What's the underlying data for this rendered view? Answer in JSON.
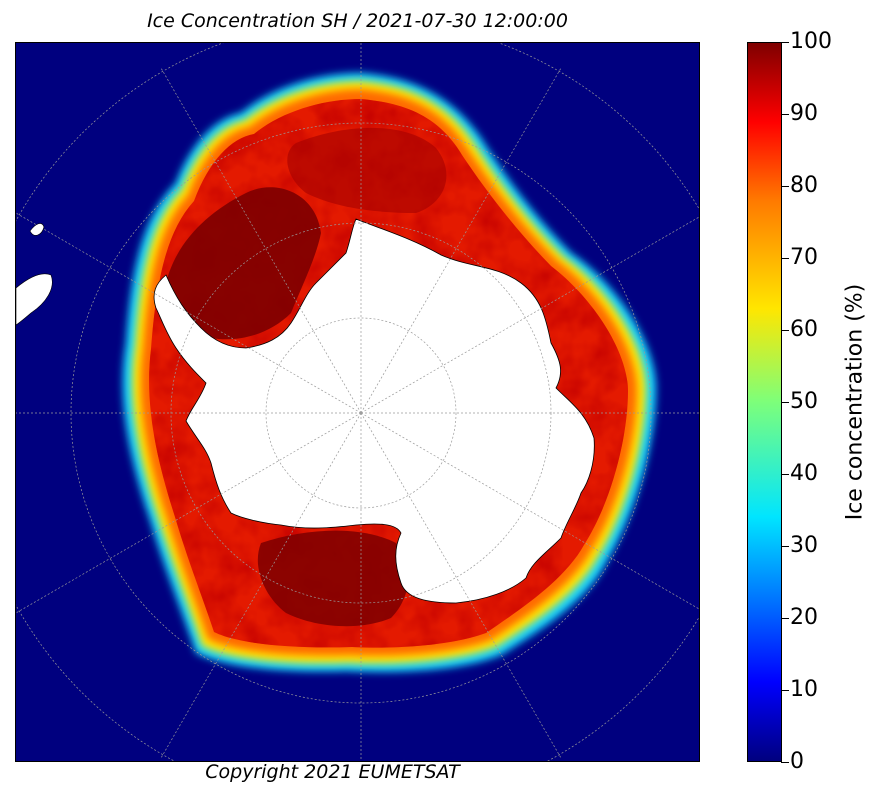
{
  "title": "Ice Concentration SH / 2021-07-30 12:00:00",
  "copyright": "Copyright 2021 EUMETSAT",
  "colorbar": {
    "label": "Ice concentration (%)",
    "ticks": [
      "0",
      "10",
      "20",
      "30",
      "40",
      "50",
      "60",
      "70",
      "80",
      "90",
      "100"
    ],
    "range": [
      0,
      100
    ],
    "colormap": "jet",
    "colors": [
      "#00007f",
      "#0000ff",
      "#00e5ff",
      "#7dff7a",
      "#ffe600",
      "#ff7a00",
      "#ff0000",
      "#7f0000"
    ]
  },
  "map": {
    "projection": "south-polar-stereographic",
    "hemisphere": "SH",
    "ocean_color": "#00007f",
    "land_color": "#ffffff",
    "gridlines": true
  }
}
